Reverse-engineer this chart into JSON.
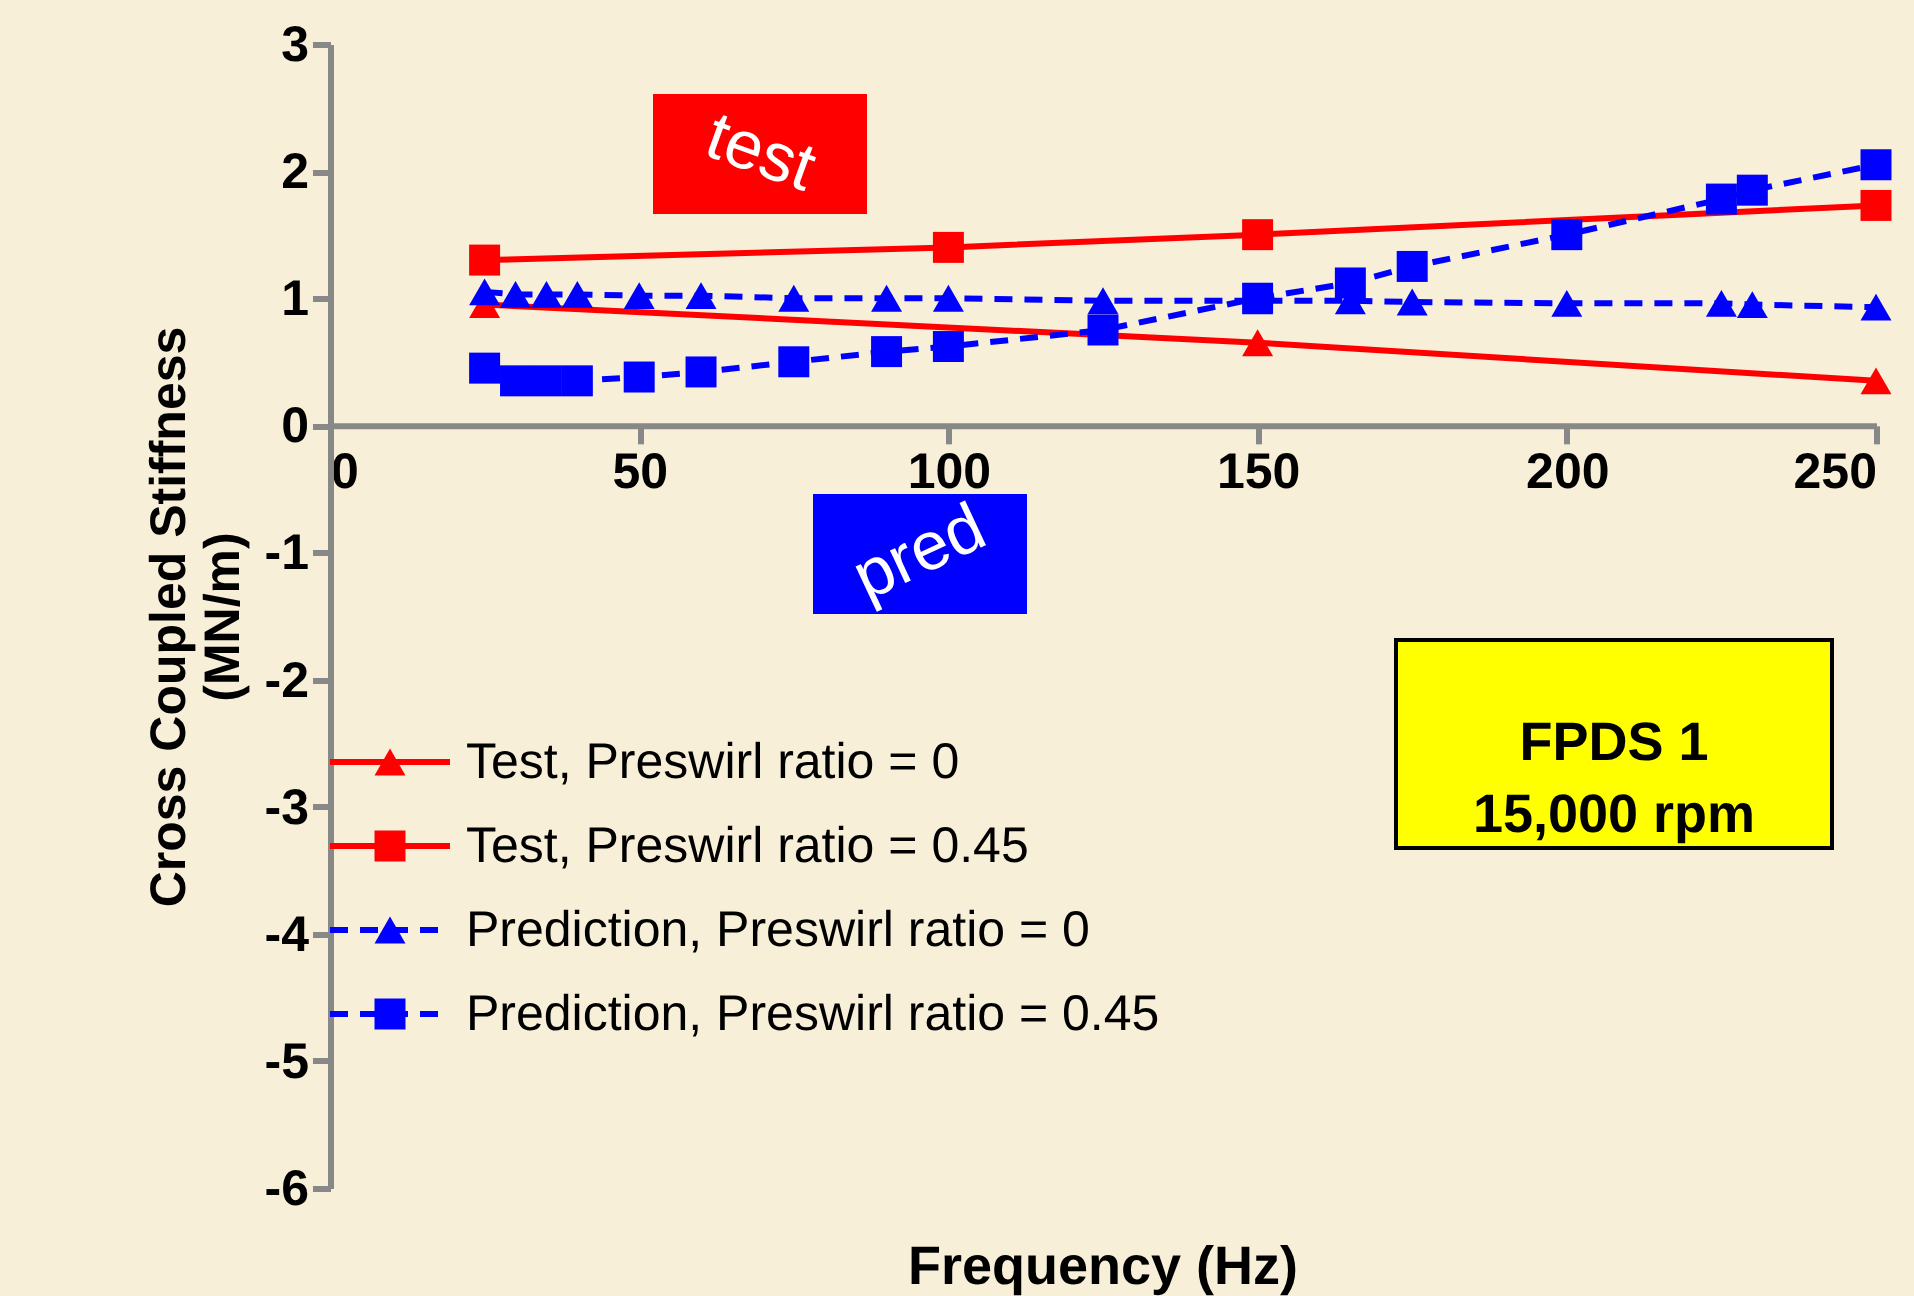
{
  "chart_data": {
    "type": "line",
    "xlabel": "Frequency (Hz)",
    "ylabel": "Cross Coupled Stiffness\n(MN/m)",
    "xlim": [
      0,
      250
    ],
    "xticks": [
      0,
      50,
      100,
      150,
      200,
      250
    ],
    "ylim": [
      -6,
      3
    ],
    "yticks": [
      {
        "value": -6,
        "label": "-6"
      },
      {
        "value": -5,
        "label": "-5"
      },
      {
        "value": -4,
        "label": "-4"
      },
      {
        "value": -3,
        "label": "-3"
      },
      {
        "value": -2,
        "label": "-2"
      },
      {
        "value": -1,
        "label": "-1"
      },
      0,
      1,
      2,
      3
    ],
    "grid": false,
    "legend": "bottom left",
    "series": [
      {
        "name": "Test, Preswirl ratio = 0",
        "color": "#ff0000",
        "marker": "triangle",
        "line_style": "solid",
        "x": [
          25,
          150,
          250
        ],
        "values": [
          0.95,
          0.65,
          0.35
        ]
      },
      {
        "name": "Test, Preswirl ratio = 0.45",
        "color": "#ff0000",
        "marker": "square",
        "line_style": "solid",
        "x": [
          25,
          100,
          150,
          250
        ],
        "values": [
          1.3,
          1.4,
          1.5,
          1.73
        ]
      },
      {
        "name": "Prediction, Preswirl ratio = 0",
        "color": "#0000ff",
        "marker": "triangle",
        "line_style": "dashed",
        "x": [
          25,
          30,
          35,
          40,
          50,
          60,
          75,
          90,
          100,
          125,
          150,
          165,
          175,
          200,
          225,
          230,
          250
        ],
        "values": [
          1.05,
          1.03,
          1.03,
          1.03,
          1.02,
          1.02,
          1.0,
          1.0,
          1.0,
          0.98,
          0.98,
          0.98,
          0.97,
          0.96,
          0.96,
          0.95,
          0.93
        ]
      },
      {
        "name": "Prediction, Preswirl ratio = 0.45",
        "color": "#0000ff",
        "marker": "square",
        "line_style": "dashed",
        "x": [
          25,
          30,
          35,
          40,
          50,
          60,
          75,
          90,
          100,
          125,
          150,
          165,
          175,
          200,
          225,
          230,
          250
        ],
        "values": [
          0.45,
          0.35,
          0.35,
          0.35,
          0.38,
          0.42,
          0.5,
          0.58,
          0.62,
          0.75,
          1.0,
          1.12,
          1.25,
          1.5,
          1.78,
          1.85,
          2.05
        ]
      }
    ],
    "annotations": [
      "test",
      "pred",
      "FPDS 1\n15,000 rpm"
    ]
  }
}
